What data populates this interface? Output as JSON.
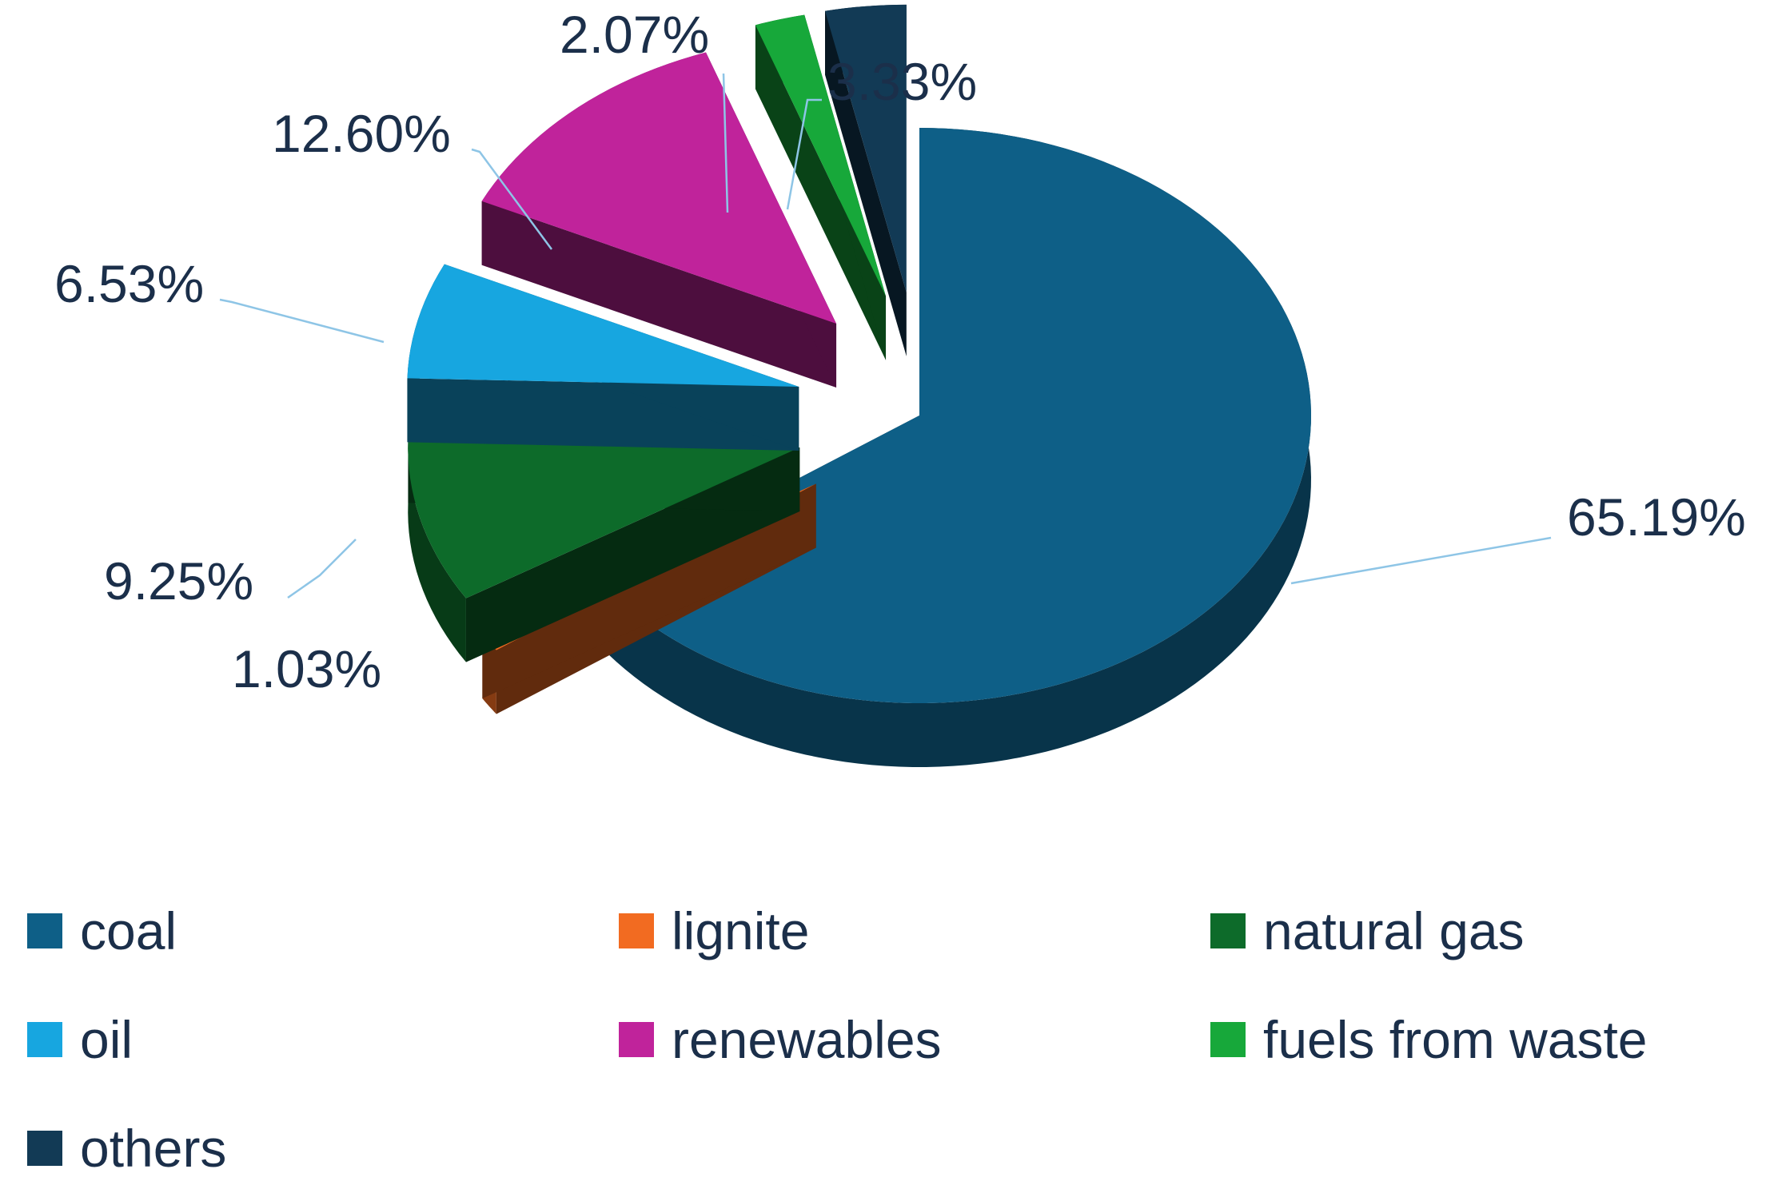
{
  "chart_data": {
    "type": "pie",
    "title": "",
    "slices": [
      {
        "name": "coal",
        "value": 65.19,
        "label": "65.19%",
        "color": "#0e5f87"
      },
      {
        "name": "lignite",
        "value": 1.03,
        "label": "1.03%",
        "color": "#f26b21"
      },
      {
        "name": "natural gas",
        "value": 9.25,
        "label": "9.25%",
        "color": "#0d6b2a"
      },
      {
        "name": "oil",
        "value": 6.53,
        "label": "6.53%",
        "color": "#17a6e0"
      },
      {
        "name": "renewables",
        "value": 12.6,
        "label": "12.60%",
        "color": "#c0239b"
      },
      {
        "name": "fuels from waste",
        "value": 2.07,
        "label": "2.07%",
        "color": "#17a83a"
      },
      {
        "name": "others",
        "value": 3.33,
        "label": "3.33%",
        "color": "#123a55"
      }
    ],
    "legend_position": "bottom",
    "style": "3d-exploded"
  }
}
